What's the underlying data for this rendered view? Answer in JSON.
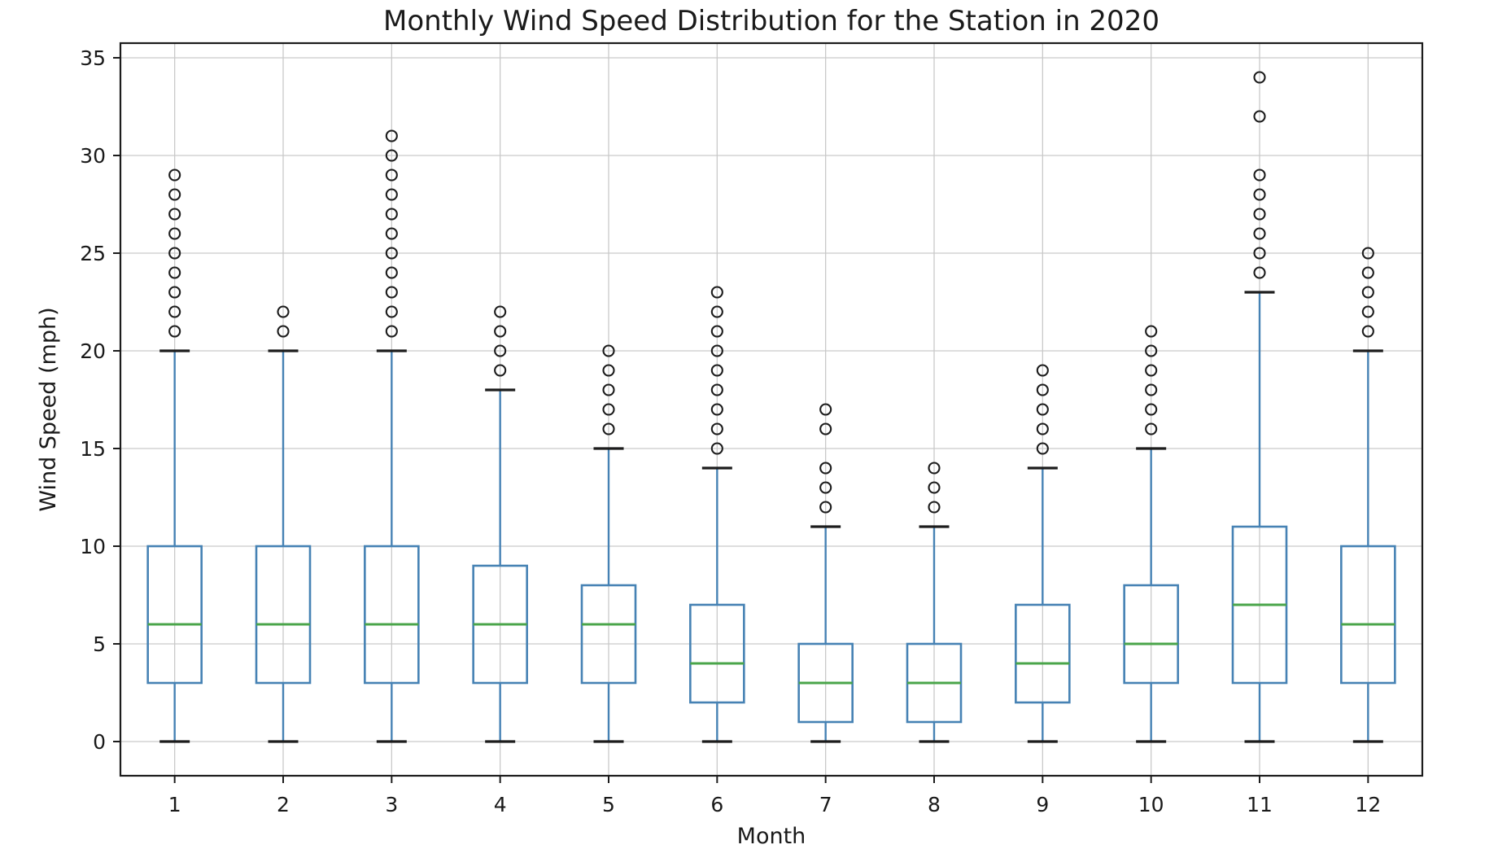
{
  "chart_data": {
    "type": "boxplot",
    "title": "Monthly Wind Speed Distribution for the Station in 2020",
    "xlabel": "Month",
    "ylabel": "Wind Speed (mph)",
    "categories": [
      "1",
      "2",
      "3",
      "4",
      "5",
      "6",
      "7",
      "8",
      "9",
      "10",
      "11",
      "12"
    ],
    "yticks": [
      0,
      5,
      10,
      15,
      20,
      25,
      30,
      35
    ],
    "ylim": [
      -1.75,
      35.75
    ],
    "grid": true,
    "legend_position": "none",
    "colors": {
      "box": "#4682b4",
      "whisker": "#4682b4",
      "median": "#4aa54a",
      "cap": "#1c1c1c",
      "outlier": "#1c1c1c",
      "grid": "#c9c9c9",
      "spine": "#1c1c1c",
      "text": "#1a1a1a",
      "background": "#ffffff"
    },
    "boxes": [
      {
        "month": "1",
        "whisker_low": 0,
        "q1": 3,
        "median": 6,
        "q3": 10,
        "whisker_high": 20,
        "outliers": [
          21,
          22,
          23,
          24,
          25,
          26,
          27,
          28,
          29
        ]
      },
      {
        "month": "2",
        "whisker_low": 0,
        "q1": 3,
        "median": 6,
        "q3": 10,
        "whisker_high": 20,
        "outliers": [
          21,
          22
        ]
      },
      {
        "month": "3",
        "whisker_low": 0,
        "q1": 3,
        "median": 6,
        "q3": 10,
        "whisker_high": 20,
        "outliers": [
          21,
          22,
          23,
          24,
          25,
          26,
          27,
          28,
          29,
          30,
          31
        ]
      },
      {
        "month": "4",
        "whisker_low": 0,
        "q1": 3,
        "median": 6,
        "q3": 9,
        "whisker_high": 18,
        "outliers": [
          19,
          20,
          21,
          22
        ]
      },
      {
        "month": "5",
        "whisker_low": 0,
        "q1": 3,
        "median": 6,
        "q3": 8,
        "whisker_high": 15,
        "outliers": [
          16,
          17,
          18,
          19,
          20
        ]
      },
      {
        "month": "6",
        "whisker_low": 0,
        "q1": 2,
        "median": 4,
        "q3": 7,
        "whisker_high": 14,
        "outliers": [
          15,
          16,
          17,
          18,
          19,
          20,
          21,
          22,
          23
        ]
      },
      {
        "month": "7",
        "whisker_low": 0,
        "q1": 1,
        "median": 3,
        "q3": 5,
        "whisker_high": 11,
        "outliers": [
          12,
          13,
          14,
          16,
          17
        ]
      },
      {
        "month": "8",
        "whisker_low": 0,
        "q1": 1,
        "median": 3,
        "q3": 5,
        "whisker_high": 11,
        "outliers": [
          12,
          13,
          14
        ]
      },
      {
        "month": "9",
        "whisker_low": 0,
        "q1": 2,
        "median": 4,
        "q3": 7,
        "whisker_high": 14,
        "outliers": [
          15,
          16,
          17,
          18,
          19
        ]
      },
      {
        "month": "10",
        "whisker_low": 0,
        "q1": 3,
        "median": 5,
        "q3": 8,
        "whisker_high": 15,
        "outliers": [
          16,
          17,
          18,
          19,
          20,
          21
        ]
      },
      {
        "month": "11",
        "whisker_low": 0,
        "q1": 3,
        "median": 7,
        "q3": 11,
        "whisker_high": 23,
        "outliers": [
          24,
          25,
          26,
          27,
          28,
          29,
          32,
          34
        ]
      },
      {
        "month": "12",
        "whisker_low": 0,
        "q1": 3,
        "median": 6,
        "q3": 10,
        "whisker_high": 20,
        "outliers": [
          21,
          22,
          23,
          24,
          25
        ]
      }
    ]
  }
}
